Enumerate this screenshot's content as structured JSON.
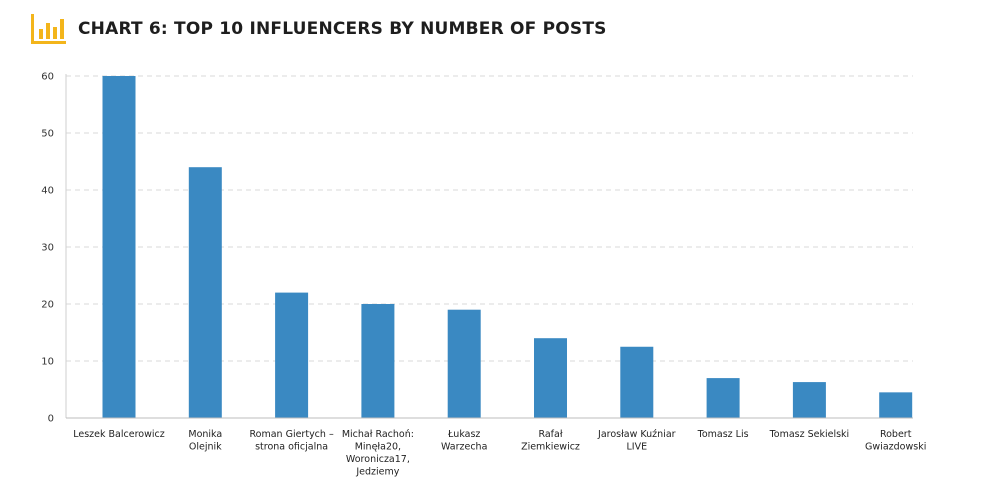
{
  "header": {
    "title": "CHART 6: TOP 10 INFLUENCERS BY NUMBER OF POSTS",
    "icon": "bar-chart-icon",
    "icon_color": "#f3b51b"
  },
  "chart_data": {
    "type": "bar",
    "title": "CHART 6: TOP 10 INFLUENCERS BY NUMBER OF POSTS",
    "xlabel": "",
    "ylabel": "",
    "ylim": [
      0,
      60
    ],
    "yticks": [
      0,
      10,
      20,
      30,
      40,
      50,
      60
    ],
    "grid": true,
    "legend": "none",
    "bar_color": "#3a89c2",
    "categories": [
      "Leszek Balcerowicz",
      "Monika Olejnik",
      "Roman Giertych – strona oficjalna",
      "Michał Rachoń: Minęła20, Woronicza17, Jedziemy",
      "Łukasz Warzecha",
      "Rafał Ziemkiewicz",
      "Jarosław Kuźniar LIVE",
      "Tomasz Lis",
      "Tomasz Sekielski",
      "Robert Gwiazdowski"
    ],
    "category_lines": [
      [
        "Leszek Balcerowicz"
      ],
      [
        "Monika",
        "Olejnik"
      ],
      [
        "Roman Giertych –",
        "strona oficjalna"
      ],
      [
        "Michał Rachoń:",
        "Minęła20,",
        "Woronicza17,",
        "Jedziemy"
      ],
      [
        "Łukasz",
        "Warzecha"
      ],
      [
        "Rafał",
        "Ziemkiewicz"
      ],
      [
        "Jarosław Kuźniar",
        "LIVE"
      ],
      [
        "Tomasz Lis"
      ],
      [
        "Tomasz Sekielski"
      ],
      [
        "Robert",
        "Gwiazdowski"
      ]
    ],
    "values": [
      60,
      44,
      22,
      20,
      19,
      14,
      12.5,
      7,
      6.3,
      4.5
    ]
  }
}
